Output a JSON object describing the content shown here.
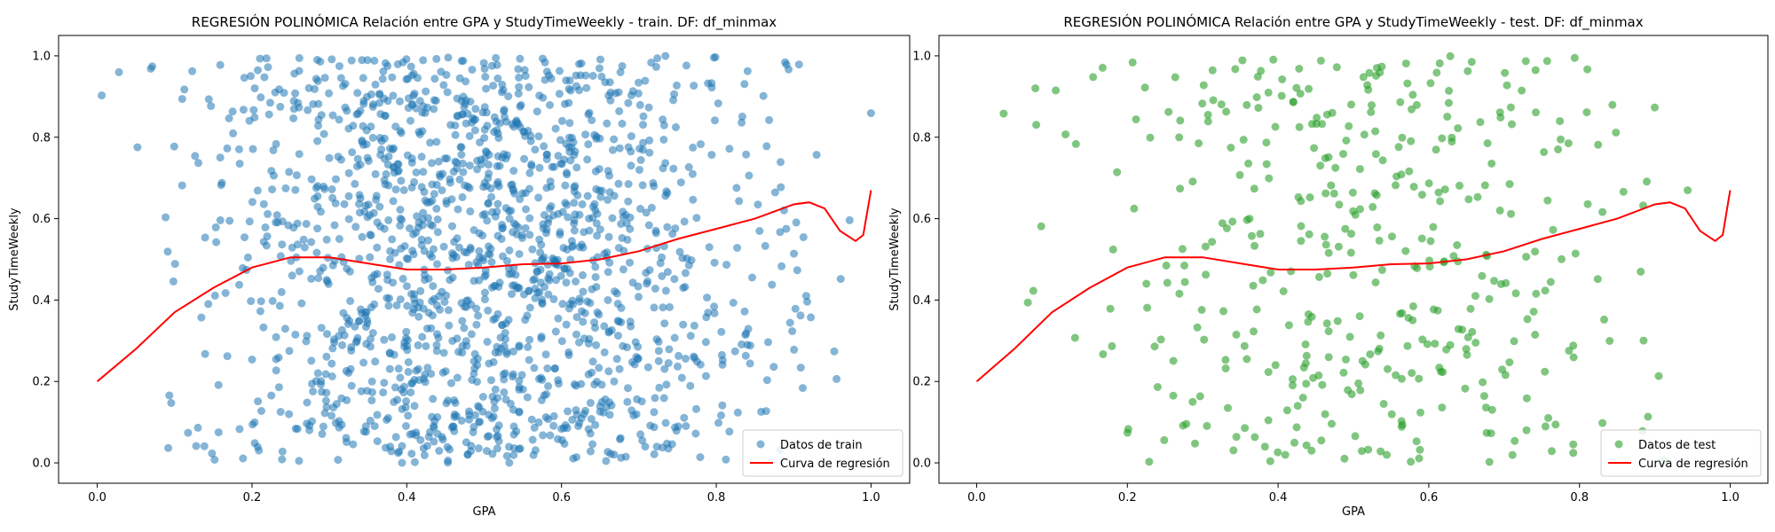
{
  "chart_data": [
    {
      "type": "scatter",
      "title": "REGRESIÓN POLINÓMICA Relación entre GPA y StudyTimeWeekly - train. DF: df_minmax",
      "xlabel": "GPA",
      "ylabel": "StudyTimeWeekly",
      "xlim": [
        -0.05,
        1.05
      ],
      "ylim": [
        -0.05,
        1.05
      ],
      "xticks": [
        "0.0",
        "0.2",
        "0.4",
        "0.6",
        "0.8",
        "1.0"
      ],
      "yticks": [
        "0.0",
        "0.2",
        "0.4",
        "0.6",
        "0.8",
        "1.0"
      ],
      "grid": false,
      "legend_position": "lower-right",
      "scatter_series": {
        "name": "Datos de train",
        "color": "#1f77b4",
        "opacity": 0.55,
        "n_points": 1620
      },
      "curve_series": {
        "name": "Curva de regresión",
        "color": "#ff0000",
        "x": [
          0.0,
          0.05,
          0.1,
          0.15,
          0.2,
          0.25,
          0.3,
          0.35,
          0.4,
          0.45,
          0.5,
          0.55,
          0.6,
          0.65,
          0.7,
          0.75,
          0.8,
          0.85,
          0.9,
          0.92,
          0.94,
          0.96,
          0.98,
          0.99,
          1.0
        ],
        "y": [
          0.2,
          0.28,
          0.37,
          0.43,
          0.48,
          0.505,
          0.505,
          0.49,
          0.475,
          0.475,
          0.48,
          0.488,
          0.49,
          0.5,
          0.52,
          0.55,
          0.575,
          0.6,
          0.635,
          0.64,
          0.625,
          0.57,
          0.545,
          0.56,
          0.67
        ]
      }
    },
    {
      "type": "scatter",
      "title": "REGRESIÓN POLINÓMICA Relación entre GPA y StudyTimeWeekly - test. DF: df_minmax",
      "xlabel": "GPA",
      "ylabel": "StudyTimeWeekly",
      "xlim": [
        -0.05,
        1.05
      ],
      "ylim": [
        -0.05,
        1.05
      ],
      "xticks": [
        "0.0",
        "0.2",
        "0.4",
        "0.6",
        "0.8",
        "1.0"
      ],
      "yticks": [
        "0.0",
        "0.2",
        "0.4",
        "0.6",
        "0.8",
        "1.0"
      ],
      "grid": false,
      "legend_position": "lower-right",
      "scatter_series": {
        "name": "Datos de test",
        "color": "#2ca02c",
        "opacity": 0.6,
        "n_points": 420
      },
      "curve_series": {
        "name": "Curva de regresión",
        "color": "#ff0000",
        "x": [
          0.0,
          0.05,
          0.1,
          0.15,
          0.2,
          0.25,
          0.3,
          0.35,
          0.4,
          0.45,
          0.5,
          0.55,
          0.6,
          0.65,
          0.7,
          0.75,
          0.8,
          0.85,
          0.9,
          0.92,
          0.94,
          0.96,
          0.98,
          0.99,
          1.0
        ],
        "y": [
          0.2,
          0.28,
          0.37,
          0.43,
          0.48,
          0.505,
          0.505,
          0.49,
          0.475,
          0.475,
          0.48,
          0.488,
          0.49,
          0.5,
          0.52,
          0.55,
          0.575,
          0.6,
          0.635,
          0.64,
          0.625,
          0.57,
          0.545,
          0.56,
          0.67
        ]
      }
    }
  ]
}
